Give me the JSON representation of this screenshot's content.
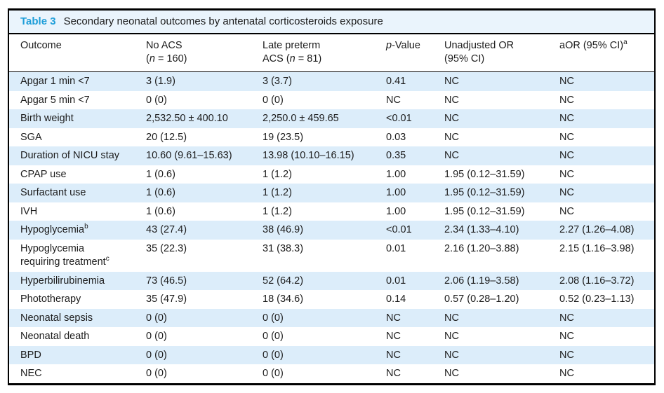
{
  "colors": {
    "accent": "#1e9ed9",
    "title_bar_bg": "#eaf4fc",
    "row_stripe": "#dcedfa",
    "frame_border": "#000000",
    "text": "#1c1c1c"
  },
  "table": {
    "title_label": "Table 3",
    "title_text": "Secondary neonatal outcomes by antenatal corticosteroids exposure",
    "columns": [
      {
        "label": "Outcome"
      },
      {
        "label": "No ACS\n(*n* = 160)"
      },
      {
        "label": "Late preterm\nACS (*n* = 81)"
      },
      {
        "label": "*p*-Value"
      },
      {
        "label": "Unadjusted OR\n(95% CI)"
      },
      {
        "label": "aOR (95% CI)^a^"
      }
    ],
    "rows": [
      [
        "Apgar 1 min <7",
        "3 (1.9)",
        "3 (3.7)",
        "0.41",
        "NC",
        "NC"
      ],
      [
        "Apgar 5 min <7",
        "0 (0)",
        "0 (0)",
        "NC",
        "NC",
        "NC"
      ],
      [
        "Birth weight",
        "2,532.50 ± 400.10",
        "2,250.0 ± 459.65",
        "<0.01",
        "NC",
        "NC"
      ],
      [
        "SGA",
        "20 (12.5)",
        "19 (23.5)",
        "0.03",
        "NC",
        "NC"
      ],
      [
        "Duration of NICU stay",
        "10.60 (9.61–15.63)",
        "13.98 (10.10–16.15)",
        "0.35",
        "NC",
        "NC"
      ],
      [
        "CPAP use",
        "1 (0.6)",
        "1 (1.2)",
        "1.00",
        "1.95 (0.12–31.59)",
        "NC"
      ],
      [
        "Surfactant use",
        "1 (0.6)",
        "1 (1.2)",
        "1.00",
        "1.95 (0.12–31.59)",
        "NC"
      ],
      [
        "IVH",
        "1 (0.6)",
        "1 (1.2)",
        "1.00",
        "1.95 (0.12–31.59)",
        "NC"
      ],
      [
        "Hypoglycemia^b^",
        "43 (27.4)",
        "38 (46.9)",
        "<0.01",
        "2.34 (1.33–4.10)",
        "2.27 (1.26–4.08)"
      ],
      [
        "Hypoglycemia\nrequiring treatment^c^",
        "35 (22.3)",
        "31 (38.3)",
        "0.01",
        "2.16 (1.20–3.88)",
        "2.15 (1.16–3.98)"
      ],
      [
        "Hyperbilirubinemia",
        "73 (46.5)",
        "52 (64.2)",
        "0.01",
        "2.06 (1.19–3.58)",
        "2.08 (1.16–3.72)"
      ],
      [
        "Phototherapy",
        "35 (47.9)",
        "18 (34.6)",
        "0.14",
        "0.57 (0.28–1.20)",
        "0.52 (0.23–1.13)"
      ],
      [
        "Neonatal sepsis",
        "0 (0)",
        "0 (0)",
        "NC",
        "NC",
        "NC"
      ],
      [
        "Neonatal death",
        "0 (0)",
        "0 (0)",
        "NC",
        "NC",
        "NC"
      ],
      [
        "BPD",
        "0 (0)",
        "0 (0)",
        "NC",
        "NC",
        "NC"
      ],
      [
        "NEC",
        "0 (0)",
        "0 (0)",
        "NC",
        "NC",
        "NC"
      ]
    ]
  }
}
